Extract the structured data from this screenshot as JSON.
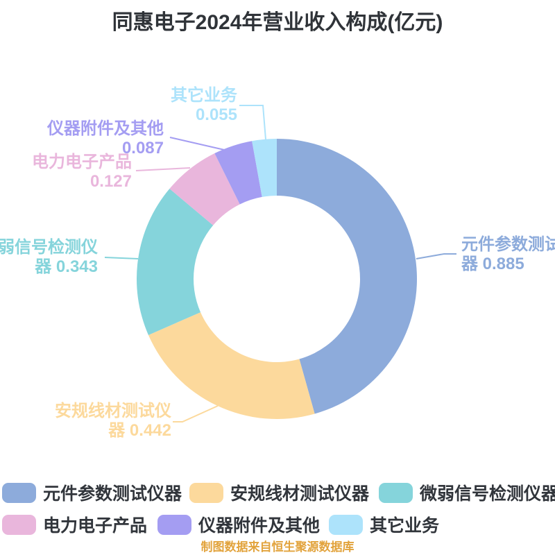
{
  "title": "同惠电子2024年营业收入构成(亿元)",
  "footer": "制图数据来自恒生聚源数据库",
  "chart_data": {
    "type": "pie",
    "subtype": "donut",
    "title": "同惠电子2024年营业收入构成(亿元)",
    "unit": "亿元",
    "total": 1.939,
    "legend_position": "bottom",
    "series": [
      {
        "name": "元件参数测试仪器",
        "value": 0.885,
        "color": "#8dabdb"
      },
      {
        "name": "安规线材测试仪器",
        "value": 0.442,
        "color": "#fcd99c"
      },
      {
        "name": "微弱信号检测仪器",
        "value": 0.343,
        "color": "#85d4db"
      },
      {
        "name": "电力电子产品",
        "value": 0.127,
        "color": "#e9b6dc"
      },
      {
        "name": "仪器附件及其他",
        "value": 0.087,
        "color": "#a49df2"
      },
      {
        "name": "其它业务",
        "value": 0.055,
        "color": "#ade3fb"
      }
    ]
  },
  "callouts": [
    {
      "lines": [
        "元件参数测试仪",
        "器 0.885"
      ],
      "color": "#8dabdb"
    },
    {
      "lines": [
        "安规线材测试仪",
        "器 0.442"
      ],
      "color": "#fcd99c"
    },
    {
      "lines": [
        "微弱信号检测仪",
        "器 0.343"
      ],
      "color": "#85d4db"
    },
    {
      "lines": [
        "电力电子产品",
        "0.127"
      ],
      "color": "#e9b6dc"
    },
    {
      "lines": [
        "仪器附件及其他",
        "0.087"
      ],
      "color": "#a49df2"
    },
    {
      "lines": [
        "其它业务",
        "0.055"
      ],
      "color": "#ade3fb"
    }
  ],
  "legend": {
    "rows": [
      [
        {
          "label": "元件参数测试仪器",
          "color": "#8dabdb"
        },
        {
          "label": "安规线材测试仪器",
          "color": "#fcd99c"
        },
        {
          "label": "微弱信号检测仪器",
          "color": "#85d4db"
        }
      ],
      [
        {
          "label": "电力电子产品",
          "color": "#e9b6dc"
        },
        {
          "label": "仪器附件及其他",
          "color": "#a49df2"
        },
        {
          "label": "其它业务",
          "color": "#ade3fb"
        }
      ]
    ]
  }
}
